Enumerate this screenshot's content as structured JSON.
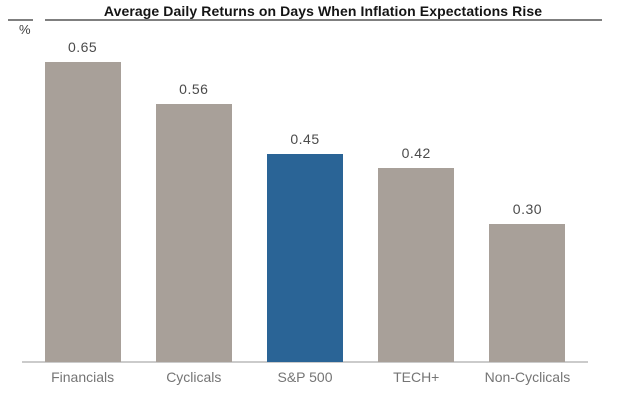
{
  "chart": {
    "title": "Average Daily Returns on Days When Inflation Expectations Rise",
    "unit_label": "%"
  },
  "chart_data": {
    "type": "bar",
    "title": "Average Daily Returns on Days When Inflation Expectations Rise",
    "xlabel": "",
    "ylabel": "%",
    "categories": [
      "Financials",
      "Cyclicals",
      "S&P 500",
      "TECH+",
      "Non-Cyclicals"
    ],
    "values": [
      0.65,
      0.56,
      0.45,
      0.42,
      0.3
    ],
    "value_labels": [
      "0.65",
      "0.56",
      "0.45",
      "0.42",
      "0.30"
    ],
    "highlight_index": 2,
    "highlight_category": "S&P 500",
    "colors": {
      "bar_default": "#a8a099",
      "bar_highlight": "#2a6496",
      "title_text": "#141414",
      "value_text": "#4b4b4b",
      "category_text": "#757575",
      "title_rule": "#7f7f7f",
      "baseline": "#cbcbcb"
    },
    "ylim": [
      0,
      0.7
    ],
    "grid": false,
    "legend": false,
    "value_labels_position": "above-bars"
  }
}
